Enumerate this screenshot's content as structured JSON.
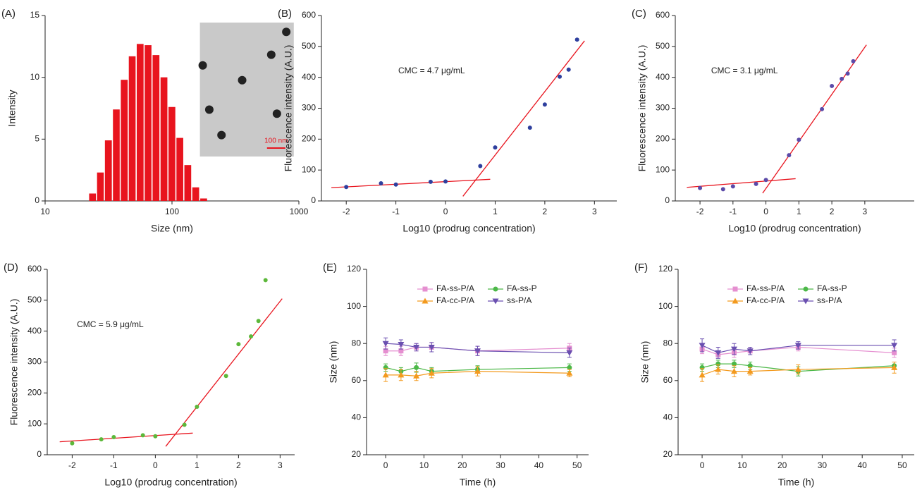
{
  "chart_data": [
    {
      "type": "histogram",
      "panel_label": "(A)",
      "x_label": "Size (nm)",
      "y_label": "Intensity",
      "bins": [
        22,
        25.4,
        29.3,
        33.9,
        39.1,
        45.2,
        52.2,
        60.3,
        69.6,
        80.4,
        92.9,
        107.3,
        123.9,
        143.1,
        165.3,
        190.9
      ],
      "values": [
        0.6,
        2.3,
        4.9,
        7.4,
        9.8,
        11.7,
        12.7,
        12.6,
        11.8,
        10.0,
        7.6,
        5.1,
        2.9,
        1.1,
        0.2
      ],
      "color": "#e8141e",
      "xscale": "log",
      "xlim": [
        10,
        1000
      ],
      "xticks": [
        10,
        100,
        1000
      ],
      "ylim": [
        0,
        15
      ],
      "yticks": [
        0,
        5,
        10,
        15
      ],
      "inset_scale_label": "100 nm"
    },
    {
      "type": "scatter",
      "panel_label": "(B)",
      "x_label": "Log10 (prodrug concentration)",
      "y_label": "Fluorescence intensity (A.U.)",
      "annotation": "CMC = 4.7 μg/mL",
      "x": [
        -2,
        -1.3,
        -1,
        -0.3,
        0,
        0.7,
        1,
        1.7,
        2,
        2.3,
        2.48,
        2.65
      ],
      "values": [
        45,
        57,
        53,
        62,
        63,
        113,
        173,
        237,
        312,
        402,
        425,
        522
      ],
      "color": "#2e3f9e",
      "fit_color": "#e8141e",
      "fit_lines": [
        {
          "x": [
            -2.3,
            0.9
          ],
          "y": [
            43,
            70
          ]
        },
        {
          "x": [
            0.35,
            2.8
          ],
          "y": [
            15,
            518
          ]
        }
      ],
      "xlim": [
        -2.5,
        3.45
      ],
      "xticks": [
        -2,
        -1,
        0,
        1,
        2,
        3
      ],
      "ylim": [
        0,
        600
      ],
      "yticks": [
        0,
        100,
        200,
        300,
        400,
        500,
        600
      ]
    },
    {
      "type": "scatter",
      "panel_label": "(C)",
      "x_label": "Log10 (prodrug concentration)",
      "y_label": "Fluorescence intensity (A.U.)",
      "annotation": "CMC = 3.1 μg/mL",
      "x": [
        -2,
        -1.3,
        -1,
        -0.3,
        0,
        0.7,
        1,
        1.7,
        2,
        2.3,
        2.48,
        2.65
      ],
      "values": [
        42,
        38,
        47,
        55,
        68,
        148,
        198,
        297,
        372,
        395,
        412,
        452
      ],
      "color": "#5b4aa8",
      "fit_color": "#e8141e",
      "fit_lines": [
        {
          "x": [
            -2.4,
            0.9
          ],
          "y": [
            44,
            72
          ]
        },
        {
          "x": [
            -0.1,
            3.05
          ],
          "y": [
            25,
            505
          ]
        }
      ],
      "xlim": [
        -2.75,
        4.5
      ],
      "xticks": [
        -2,
        -1,
        0,
        1,
        2,
        3
      ],
      "ylim": [
        0,
        600
      ],
      "yticks": [
        0,
        100,
        200,
        300,
        400,
        500,
        600
      ]
    },
    {
      "type": "scatter",
      "panel_label": "(D)",
      "x_label": "Log10 (prodrug concentration)",
      "y_label": "Fluorescence intensity (A.U.)",
      "annotation": "CMC = 5.9 μg/mL",
      "x": [
        -2,
        -1.3,
        -1,
        -0.3,
        0,
        0.7,
        1,
        1.7,
        2,
        2.3,
        2.48,
        2.65
      ],
      "values": [
        37,
        50,
        57,
        63,
        60,
        97,
        155,
        255,
        358,
        383,
        433,
        565
      ],
      "color": "#5cb83a",
      "fit_color": "#e8141e",
      "fit_lines": [
        {
          "x": [
            -2.3,
            0.9
          ],
          "y": [
            42,
            70
          ]
        },
        {
          "x": [
            0.25,
            3.05
          ],
          "y": [
            27,
            505
          ]
        }
      ],
      "xlim": [
        -2.6,
        3.35
      ],
      "xticks": [
        -2,
        -1,
        0,
        1,
        2,
        3
      ],
      "ylim": [
        0,
        600
      ],
      "yticks": [
        0,
        100,
        200,
        300,
        400,
        500,
        600
      ]
    },
    {
      "type": "line",
      "panel_label": "(E)",
      "x_label": "Time (h)",
      "y_label": "Size (nm)",
      "legend": "upper center",
      "x": [
        0,
        4,
        8,
        12,
        24,
        48
      ],
      "series": [
        {
          "name": "FA-ss-P/A",
          "color": "#e58fd0",
          "marker": "square",
          "values": [
            76,
            76,
            78,
            78,
            76,
            77.5
          ],
          "errors": [
            2.5,
            2.5,
            2,
            2.5,
            2.5,
            2.5
          ]
        },
        {
          "name": "FA-ss-P",
          "color": "#4cb848",
          "marker": "circle",
          "values": [
            67,
            65,
            67,
            65,
            66,
            67
          ],
          "errors": [
            2,
            2,
            2.5,
            2,
            2,
            2
          ]
        },
        {
          "name": "FA-cc-P/A",
          "color": "#f39a1e",
          "marker": "triangle-up",
          "values": [
            63,
            63,
            62.5,
            64,
            65,
            64
          ],
          "errors": [
            3.5,
            3,
            2.5,
            2.5,
            2.5,
            2
          ]
        },
        {
          "name": "ss-P/A",
          "color": "#6a4fb0",
          "marker": "triangle-down",
          "values": [
            80,
            79.5,
            78,
            78,
            76,
            75
          ],
          "errors": [
            3,
            2.5,
            2,
            2.5,
            2.5,
            2.5
          ]
        }
      ],
      "xlim": [
        -5,
        53
      ],
      "xticks": [
        0,
        10,
        20,
        30,
        40,
        50
      ],
      "ylim": [
        20,
        120
      ],
      "yticks": [
        20,
        40,
        60,
        80,
        100,
        120
      ]
    },
    {
      "type": "line",
      "panel_label": "(F)",
      "x_label": "Time (h)",
      "y_label": "Size (nm)",
      "legend": "upper center",
      "x": [
        0,
        4,
        8,
        12,
        24,
        48
      ],
      "series": [
        {
          "name": "FA-ss-P/A",
          "color": "#e58fd0",
          "marker": "square",
          "values": [
            77,
            74,
            75,
            76,
            78,
            75
          ],
          "errors": [
            2.5,
            2,
            2.5,
            2,
            2,
            2.5
          ]
        },
        {
          "name": "FA-ss-P",
          "color": "#4cb848",
          "marker": "circle",
          "values": [
            67,
            69,
            69,
            68,
            65,
            68
          ],
          "errors": [
            2,
            2,
            2,
            2,
            2.5,
            2
          ]
        },
        {
          "name": "FA-cc-P/A",
          "color": "#f39a1e",
          "marker": "triangle-up",
          "values": [
            63,
            66,
            65,
            65,
            66,
            67
          ],
          "errors": [
            3.5,
            2.5,
            3,
            2,
            2.5,
            3
          ]
        },
        {
          "name": "ss-P/A",
          "color": "#6a4fb0",
          "marker": "triangle-down",
          "values": [
            79,
            75,
            77,
            76,
            79,
            79
          ],
          "errors": [
            3.5,
            3,
            3,
            2,
            2,
            3
          ]
        }
      ],
      "xlim": [
        -6,
        53
      ],
      "xticks": [
        0,
        10,
        20,
        30,
        40,
        50
      ],
      "ylim": [
        20,
        120
      ],
      "yticks": [
        20,
        40,
        60,
        80,
        100,
        120
      ]
    }
  ]
}
